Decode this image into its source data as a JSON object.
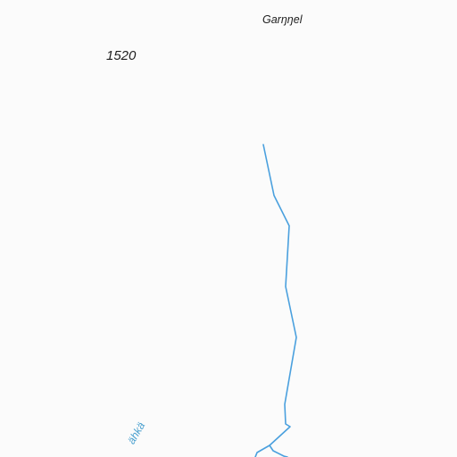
{
  "map": {
    "labels": {
      "place": "Garŋŋel",
      "elevation": "1520",
      "water": "ähkä"
    },
    "colors": {
      "background": "#fbfbfb",
      "stream": "#4aa0de",
      "label_text": "#1e1e1e",
      "water_text": "#4aa0cf"
    },
    "features": {
      "stream": "stream-line",
      "branch": "stream-branch"
    }
  }
}
